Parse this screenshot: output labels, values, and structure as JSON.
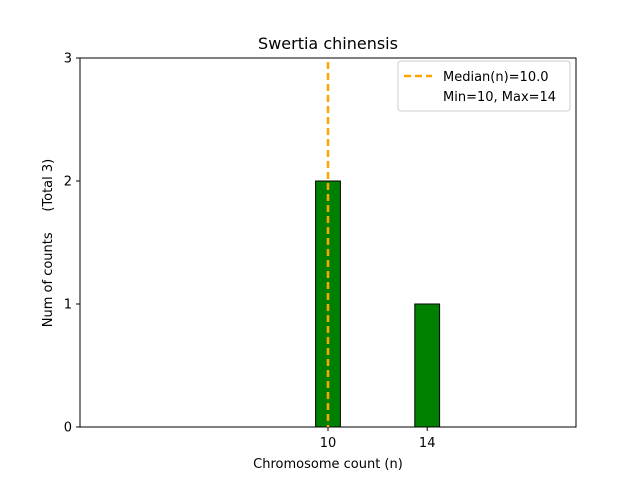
{
  "chart_data": {
    "type": "bar",
    "title": "Swertia chinensis",
    "xlabel": "Chromosome count (n)",
    "ylabel": "Num of counts     (Total 3)",
    "x": [
      10,
      14
    ],
    "values": [
      2,
      1
    ],
    "xticks": [
      "10",
      "14"
    ],
    "yticks": [
      "0",
      "1",
      "2",
      "3"
    ],
    "xlim": [
      0,
      20
    ],
    "ylim": [
      0,
      3
    ],
    "bar_color": "#008000",
    "bar_edge_color": "#000000",
    "median_line": {
      "x": 10.0,
      "color": "#FFA500",
      "style": "dashed"
    },
    "legend": {
      "placement": "top-right",
      "entries": [
        "Median(n)=10.0",
        "Min=10, Max=14"
      ]
    },
    "grid": false
  }
}
